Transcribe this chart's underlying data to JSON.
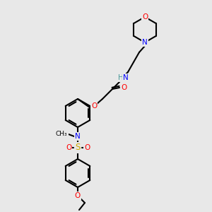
{
  "background_color": "#e8e8e8",
  "atom_colors": {
    "C": "#000000",
    "N": "#0000ff",
    "O": "#ff0000",
    "S": "#ccaa00",
    "H": "#4a9999"
  },
  "lw": 1.5,
  "fs": 7.5
}
